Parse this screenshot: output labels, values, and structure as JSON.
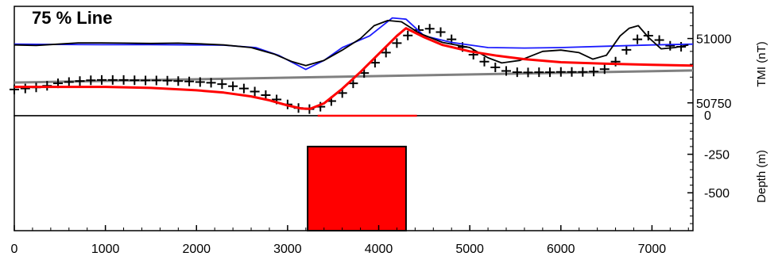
{
  "chart_data": {
    "type": "line",
    "title": "75 % Line",
    "x_ticks": [
      0,
      1000,
      2000,
      3000,
      4000,
      5000,
      6000,
      7000
    ],
    "xlim": [
      0,
      7450
    ],
    "panels": [
      {
        "name": "profile",
        "ylabel": "TMI (nT)",
        "ylim": [
          50700,
          51125
        ],
        "y_ticks": [
          50750,
          51000
        ],
        "y_tick_labels": [
          "50750",
          "51000"
        ],
        "series": [
          {
            "name": "",
            "style": "crosses",
            "color": "#000000",
            "x": [
              0,
              120,
              240,
              360,
              480,
              600,
              720,
              840,
              960,
              1080,
              1200,
              1320,
              1440,
              1560,
              1680,
              1800,
              1920,
              2040,
              2160,
              2280,
              2400,
              2520,
              2640,
              2760,
              2880,
              3000,
              3120,
              3240,
              3360,
              3480,
              3600,
              3720,
              3840,
              3960,
              4080,
              4200,
              4320,
              4440,
              4560,
              4680,
              4800,
              4920,
              5040,
              5160,
              5280,
              5400,
              5520,
              5640,
              5760,
              5880,
              6000,
              6120,
              6240,
              6360,
              6480,
              6600,
              6720,
              6840,
              6960,
              7080,
              7200,
              7320
            ],
            "y": [
              50802,
              50806,
              50810,
              50816,
              50826,
              50831,
              50835,
              50838,
              50839,
              50839,
              50839,
              50838,
              50837,
              50837,
              50836,
              50835,
              50833,
              50831,
              50828,
              50823,
              50815,
              50806,
              50794,
              50780,
              50763,
              50744,
              50730,
              50726,
              50735,
              50757,
              50788,
              50826,
              50866,
              50906,
              50945,
              50982,
              51012,
              51033,
              51038,
              51025,
              50997,
              50967,
              50937,
              50910,
              50888,
              50874,
              50869,
              50868,
              50869,
              50869,
              50870,
              50870,
              50870,
              50872,
              50881,
              50910,
              50956,
              50997,
              51011,
              50994,
              50972,
              50968
            ]
          },
          {
            "name": "",
            "style": "line",
            "color": "#000000",
            "x": [
              0,
              240,
              480,
              700,
              900,
              1200,
              1500,
              1800,
              2000,
              2300,
              2600,
              2850,
              3050,
              3200,
              3400,
              3600,
              3800,
              3950,
              4100,
              4250,
              4450,
              4700,
              5000,
              5200,
              5350,
              5550,
              5800,
              6000,
              6200,
              6350,
              6500,
              6650,
              6750,
              6850,
              6960,
              7100,
              7250,
              7400
            ],
            "y": [
              50975,
              50973,
              50978,
              50983,
              50983,
              50982,
              50981,
              50982,
              50980,
              50975,
              50965,
              50940,
              50910,
              50895,
              50915,
              50955,
              51000,
              51050,
              51070,
              51065,
              51020,
              50985,
              50965,
              50925,
              50905,
              50915,
              50950,
              50955,
              50945,
              50920,
              50935,
              51010,
              51040,
              51050,
              51005,
              50960,
              50965,
              50975
            ]
          },
          {
            "name": "",
            "style": "line",
            "color": "#1a1aff",
            "x": [
              0,
              500,
              1000,
              1500,
              2000,
              2300,
              2650,
              2900,
              3200,
              3400,
              3600,
              3900,
              4150,
              4300,
              4500,
              4800,
              5200,
              5600,
              6000,
              6500,
              7000,
              7450
            ],
            "y": [
              50978,
              50977,
              50976,
              50976,
              50975,
              50974,
              50965,
              50935,
              50880,
              50915,
              50965,
              51010,
              51080,
              51075,
              51010,
              50985,
              50965,
              50963,
              50965,
              50970,
              50975,
              50978
            ]
          },
          {
            "name": "",
            "style": "line",
            "color": "#ff0000",
            "x": [
              0,
              500,
              1000,
              1500,
              2000,
              2300,
              2600,
              2800,
              3000,
              3150,
              3250,
              3400,
              3600,
              3800,
              4000,
              4200,
              4300,
              4500,
              4700,
              5000,
              5300,
              5600,
              6000,
              6500,
              7000,
              7450
            ],
            "y": [
              50812,
              50812,
              50812,
              50808,
              50799,
              50790,
              50775,
              50760,
              50740,
              50728,
              50727,
              50748,
              50805,
              50870,
              50940,
              51010,
              51040,
              51005,
              50975,
              50950,
              50933,
              50920,
              50908,
              50902,
              50898,
              50895
            ]
          },
          {
            "name": "",
            "style": "line",
            "color": "#808080",
            "x": [
              0,
              7450
            ],
            "y": [
              50829,
              50876
            ]
          }
        ]
      },
      {
        "name": "depth-model",
        "ylabel": "Depth (m)",
        "ylim": [
          -720,
          0
        ],
        "y_ticks": [
          0,
          -250,
          -500
        ],
        "y_tick_labels": [
          "0",
          "-250",
          "-500"
        ],
        "source_body": {
          "x_range": [
            3220,
            4300
          ],
          "top": -200,
          "bottom": -720,
          "color": "#ff0000"
        },
        "surface_segment": {
          "x_range": [
            3330,
            4420
          ],
          "color": "#ff0000"
        }
      }
    ]
  }
}
